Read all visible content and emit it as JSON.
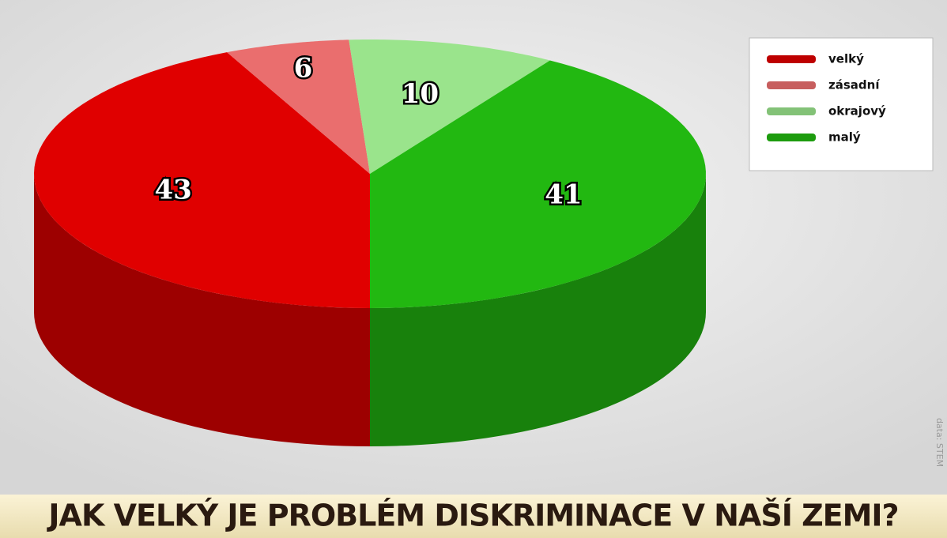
{
  "chart_data": {
    "type": "pie",
    "title": "JAK VELKÝ JE PROBLÉM DISKRIMINACE V NAŠÍ ZEMI?",
    "source": "data: STEM",
    "categories": [
      "velký",
      "zásadní",
      "okrajový",
      "malý"
    ],
    "values": [
      43,
      6,
      10,
      41
    ],
    "colors": [
      "#e00000",
      "#ea6e6e",
      "#9ae48c",
      "#22b811"
    ],
    "legend": "top-right"
  }
}
